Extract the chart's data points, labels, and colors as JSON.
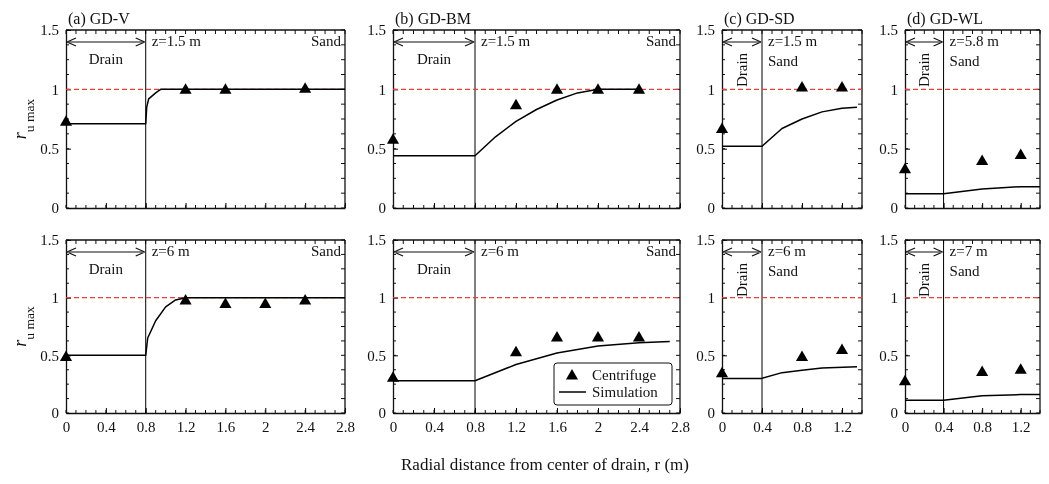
{
  "chart_data": [
    {
      "type": "line",
      "title": "(a) GD-V",
      "ylabel": "r$_{u max}$",
      "xlim": [
        0,
        2.8
      ],
      "ylim": [
        0,
        1.5
      ],
      "xticks": [
        0,
        0.4,
        0.8,
        1.2,
        1.6,
        2,
        2.4,
        2.8
      ],
      "yticks": [
        0,
        0.5,
        1,
        1.5
      ],
      "tick_labels": "y",
      "annotations": [
        "Drain",
        "z=1.5 m",
        "Sand"
      ],
      "ref_lines": [
        {
          "axis": "x",
          "value": 0.8,
          "color": "#000000"
        },
        {
          "axis": "y",
          "value": 1,
          "color": "#e8413c",
          "line_style": "dashed"
        }
      ],
      "series": [
        {
          "type": "line",
          "color": "#000000",
          "x": [
            0,
            0.8,
            0.81,
            0.83,
            0.9,
            0.95,
            2.8
          ],
          "values": [
            0.71,
            0.71,
            0.85,
            0.92,
            0.97,
            1.0,
            1.0
          ]
        },
        {
          "type": "scatter",
          "marker": "triangle",
          "color": "#000000",
          "x": [
            0,
            1.2,
            1.6,
            2.4
          ],
          "values": [
            0.73,
            1.0,
            1.0,
            1.01
          ]
        }
      ]
    },
    {
      "type": "line",
      "title": "(b) GD-BM",
      "xlim": [
        0,
        2.8
      ],
      "ylim": [
        0,
        1.5
      ],
      "xticks": [
        0,
        0.4,
        0.8,
        1.2,
        1.6,
        2,
        2.4,
        2.8
      ],
      "yticks": [
        0,
        0.5,
        1,
        1.5
      ],
      "tick_labels": "y",
      "annotations": [
        "Drain",
        "z=1.5 m",
        "Sand"
      ],
      "ref_lines": [
        {
          "axis": "x",
          "value": 0.8,
          "color": "#000000"
        },
        {
          "axis": "y",
          "value": 1,
          "color": "#e8413c",
          "line_style": "dashed"
        }
      ],
      "series": [
        {
          "type": "line",
          "color": "#000000",
          "x": [
            0,
            0.8,
            1.0,
            1.2,
            1.4,
            1.6,
            1.8,
            2.0,
            2.4
          ],
          "values": [
            0.44,
            0.44,
            0.6,
            0.73,
            0.83,
            0.91,
            0.97,
            1.0,
            1.0
          ]
        },
        {
          "type": "scatter",
          "marker": "triangle",
          "color": "#000000",
          "x": [
            0,
            1.2,
            1.6,
            2.0,
            2.4
          ],
          "values": [
            0.58,
            0.87,
            1.0,
            1.0,
            1.0
          ]
        }
      ]
    },
    {
      "type": "line",
      "title": "(c) GD-SD",
      "xlim": [
        0,
        1.4
      ],
      "ylim": [
        0,
        1.5
      ],
      "xticks": [
        0,
        0.4,
        0.8,
        1.2
      ],
      "yticks": [
        0,
        0.5,
        1,
        1.5
      ],
      "tick_labels": "y",
      "annotations": [
        "Drain",
        "z=1.5 m",
        "Sand"
      ],
      "ref_lines": [
        {
          "axis": "x",
          "value": 0.4,
          "color": "#000000"
        },
        {
          "axis": "y",
          "value": 1,
          "color": "#e8413c",
          "line_style": "dashed"
        }
      ],
      "series": [
        {
          "type": "line",
          "color": "#000000",
          "x": [
            0,
            0.4,
            0.6,
            0.8,
            1.0,
            1.2,
            1.35
          ],
          "values": [
            0.52,
            0.52,
            0.67,
            0.75,
            0.81,
            0.84,
            0.85
          ]
        },
        {
          "type": "scatter",
          "marker": "triangle",
          "color": "#000000",
          "x": [
            0,
            0.8,
            1.2
          ],
          "values": [
            0.67,
            1.02,
            1.02
          ]
        }
      ]
    },
    {
      "type": "line",
      "title": "(d) GD-WL",
      "xlim": [
        0,
        1.4
      ],
      "ylim": [
        0,
        1.5
      ],
      "xticks": [
        0,
        0.4,
        0.8,
        1.2
      ],
      "yticks": [
        0,
        0.5,
        1,
        1.5
      ],
      "tick_labels": "y",
      "annotations": [
        "Drain",
        "z=5.8 m",
        "Sand"
      ],
      "ref_lines": [
        {
          "axis": "x",
          "value": 0.4,
          "color": "#000000"
        },
        {
          "axis": "y",
          "value": 1,
          "color": "#e8413c",
          "line_style": "dashed"
        }
      ],
      "series": [
        {
          "type": "line",
          "color": "#000000",
          "x": [
            0,
            0.4,
            0.8,
            1.2,
            1.4
          ],
          "values": [
            0.12,
            0.12,
            0.16,
            0.18,
            0.18
          ]
        },
        {
          "type": "scatter",
          "marker": "triangle",
          "color": "#000000",
          "x": [
            0,
            0.8,
            1.2
          ],
          "values": [
            0.33,
            0.4,
            0.45
          ]
        }
      ]
    },
    {
      "type": "line",
      "ylabel": "r$_{u max}$",
      "xlabel": "Radial distance from center of drain, r (m)",
      "xlim": [
        0,
        2.8
      ],
      "ylim": [
        0,
        1.5
      ],
      "xticks": [
        0,
        0.4,
        0.8,
        1.2,
        1.6,
        2,
        2.4,
        2.8
      ],
      "yticks": [
        0,
        0.5,
        1,
        1.5
      ],
      "annotations": [
        "Drain",
        "z=6 m",
        "Sand"
      ],
      "ref_lines": [
        {
          "axis": "x",
          "value": 0.8,
          "color": "#000000"
        },
        {
          "axis": "y",
          "value": 1,
          "color": "#e8413c",
          "line_style": "dashed"
        }
      ],
      "series": [
        {
          "type": "line",
          "color": "#000000",
          "x": [
            0,
            0.8,
            0.82,
            0.9,
            1.0,
            1.1,
            1.2,
            2.8
          ],
          "values": [
            0.5,
            0.5,
            0.65,
            0.8,
            0.92,
            0.98,
            1.0,
            1.0
          ]
        },
        {
          "type": "scatter",
          "marker": "triangle",
          "color": "#000000",
          "x": [
            0,
            1.2,
            1.6,
            2.0,
            2.4
          ],
          "values": [
            0.49,
            0.98,
            0.95,
            0.95,
            0.98
          ]
        }
      ]
    },
    {
      "type": "line",
      "xlim": [
        0,
        2.8
      ],
      "ylim": [
        0,
        1.5
      ],
      "xticks": [
        0,
        0.4,
        0.8,
        1.2,
        1.6,
        2,
        2.4,
        2.8
      ],
      "yticks": [
        0,
        0.5,
        1,
        1.5
      ],
      "annotations": [
        "Drain",
        "z=6 m",
        "Sand"
      ],
      "legend": "bottom right",
      "ref_lines": [
        {
          "axis": "x",
          "value": 0.8,
          "color": "#000000"
        },
        {
          "axis": "y",
          "value": 1,
          "color": "#e8413c",
          "line_style": "dashed"
        }
      ],
      "series": [
        {
          "type": "scatter",
          "name": "Centrifuge",
          "marker": "triangle",
          "color": "#000000",
          "x": [
            0,
            1.2,
            1.6,
            2.0,
            2.4
          ],
          "values": [
            0.31,
            0.53,
            0.66,
            0.66,
            0.66
          ]
        },
        {
          "type": "line",
          "name": "Simulation",
          "color": "#000000",
          "x": [
            0,
            0.8,
            1.2,
            1.6,
            2.0,
            2.4,
            2.7
          ],
          "values": [
            0.28,
            0.28,
            0.42,
            0.52,
            0.58,
            0.61,
            0.62
          ]
        }
      ]
    },
    {
      "type": "line",
      "xlim": [
        0,
        1.4
      ],
      "ylim": [
        0,
        1.5
      ],
      "xticks": [
        0,
        0.4,
        0.8,
        1.2
      ],
      "yticks": [
        0,
        0.5,
        1,
        1.5
      ],
      "annotations": [
        "Drain",
        "z=6 m",
        "Sand"
      ],
      "ref_lines": [
        {
          "axis": "x",
          "value": 0.4,
          "color": "#000000"
        },
        {
          "axis": "y",
          "value": 1,
          "color": "#e8413c",
          "line_style": "dashed"
        }
      ],
      "series": [
        {
          "type": "line",
          "color": "#000000",
          "x": [
            0,
            0.4,
            0.6,
            0.8,
            1.0,
            1.35
          ],
          "values": [
            0.3,
            0.3,
            0.35,
            0.37,
            0.39,
            0.4
          ]
        },
        {
          "type": "scatter",
          "marker": "triangle",
          "color": "#000000",
          "x": [
            0,
            0.8,
            1.2
          ],
          "values": [
            0.35,
            0.49,
            0.55
          ]
        }
      ]
    },
    {
      "type": "line",
      "xlim": [
        0,
        1.4
      ],
      "ylim": [
        0,
        1.5
      ],
      "xticks": [
        0,
        0.4,
        0.8,
        1.2
      ],
      "yticks": [
        0,
        0.5,
        1,
        1.5
      ],
      "annotations": [
        "Drain",
        "z=7 m",
        "Sand"
      ],
      "ref_lines": [
        {
          "axis": "x",
          "value": 0.4,
          "color": "#000000"
        },
        {
          "axis": "y",
          "value": 1,
          "color": "#e8413c",
          "line_style": "dashed"
        }
      ],
      "series": [
        {
          "type": "line",
          "color": "#000000",
          "x": [
            0,
            0.4,
            0.8,
            1.2,
            1.4
          ],
          "values": [
            0.11,
            0.11,
            0.15,
            0.16,
            0.16
          ]
        },
        {
          "type": "scatter",
          "marker": "triangle",
          "color": "#000000",
          "x": [
            0,
            0.8,
            1.2
          ],
          "values": [
            0.28,
            0.36,
            0.38
          ]
        }
      ]
    }
  ]
}
